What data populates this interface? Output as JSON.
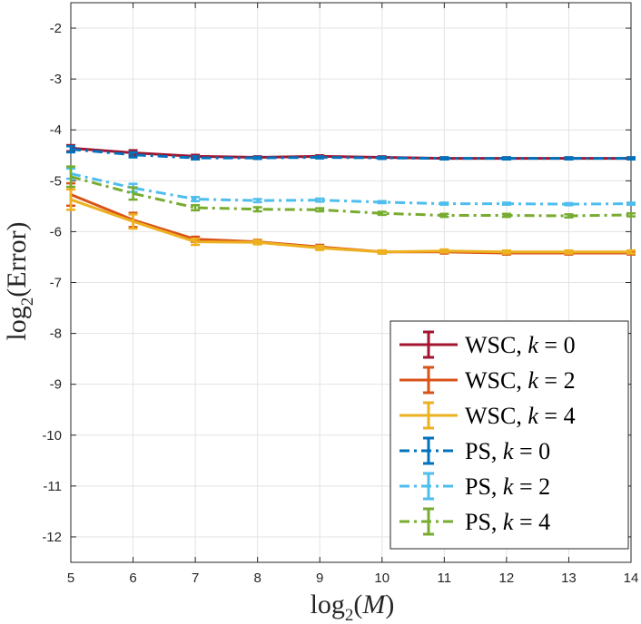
{
  "chart_data": {
    "type": "line",
    "xlabel": {
      "prefix": "log",
      "sub": "2",
      "arg": "M"
    },
    "ylabel": {
      "prefix": "log",
      "sub": "2",
      "arg": "Error"
    },
    "xlim": [
      5,
      14
    ],
    "ylim": [
      -12.5,
      -1.5
    ],
    "xticks": [
      "5",
      "6",
      "7",
      "8",
      "9",
      "10",
      "11",
      "12",
      "13",
      "14"
    ],
    "yticks": [
      "-2",
      "-3",
      "-4",
      "-5",
      "-6",
      "-7",
      "-8",
      "-9",
      "-10",
      "-11",
      "-12"
    ],
    "grid": true,
    "legend_position": "bottom-right",
    "x": [
      5,
      6,
      7,
      8,
      9,
      10,
      11,
      12,
      13,
      14
    ],
    "series": [
      {
        "method": "WSC",
        "k": "0",
        "color": "#a2142f",
        "dash": "solid",
        "values": [
          -4.36,
          -4.45,
          -4.52,
          -4.54,
          -4.52,
          -4.54,
          -4.56,
          -4.56,
          -4.56,
          -4.56
        ],
        "err": [
          0.06,
          0.05,
          0.03,
          0.02,
          0.02,
          0.02,
          0.02,
          0.02,
          0.02,
          0.02
        ]
      },
      {
        "method": "WSC",
        "k": "2",
        "color": "#d95319",
        "dash": "solid",
        "values": [
          -5.27,
          -5.77,
          -6.15,
          -6.2,
          -6.3,
          -6.4,
          -6.4,
          -6.42,
          -6.42,
          -6.42
        ],
        "err": [
          0.22,
          0.14,
          0.05,
          0.04,
          0.04,
          0.03,
          0.03,
          0.03,
          0.03,
          0.03
        ]
      },
      {
        "method": "WSC",
        "k": "4",
        "color": "#edb120",
        "dash": "solid",
        "values": [
          -5.37,
          -5.8,
          -6.2,
          -6.21,
          -6.32,
          -6.4,
          -6.38,
          -6.4,
          -6.4,
          -6.4
        ],
        "err": [
          0.2,
          0.14,
          0.06,
          0.04,
          0.04,
          0.03,
          0.03,
          0.03,
          0.03,
          0.03
        ]
      },
      {
        "method": "PS",
        "k": "0",
        "color": "#0072bd",
        "dash": "dashdot",
        "values": [
          -4.38,
          -4.49,
          -4.55,
          -4.55,
          -4.54,
          -4.55,
          -4.56,
          -4.56,
          -4.56,
          -4.56
        ],
        "err": [
          0.06,
          0.05,
          0.03,
          0.02,
          0.02,
          0.02,
          0.02,
          0.02,
          0.02,
          0.02
        ]
      },
      {
        "method": "PS",
        "k": "2",
        "color": "#4dbeee",
        "dash": "dashdot",
        "values": [
          -4.86,
          -5.14,
          -5.36,
          -5.39,
          -5.38,
          -5.42,
          -5.45,
          -5.45,
          -5.46,
          -5.45
        ],
        "err": [
          0.1,
          0.08,
          0.04,
          0.03,
          0.03,
          0.02,
          0.02,
          0.02,
          0.02,
          0.02
        ]
      },
      {
        "method": "PS",
        "k": "4",
        "color": "#77ac30",
        "dash": "dashdot",
        "values": [
          -4.92,
          -5.25,
          -5.53,
          -5.56,
          -5.57,
          -5.64,
          -5.68,
          -5.68,
          -5.69,
          -5.67
        ],
        "err": [
          0.2,
          0.12,
          0.05,
          0.04,
          0.03,
          0.03,
          0.03,
          0.03,
          0.03,
          0.03
        ]
      }
    ]
  }
}
